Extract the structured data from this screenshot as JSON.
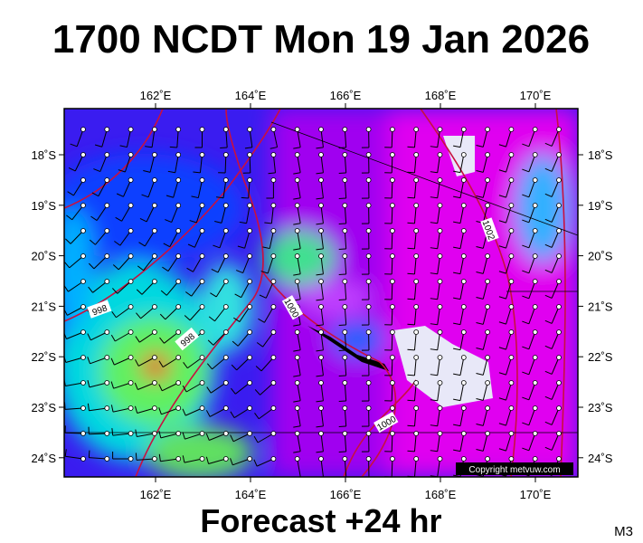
{
  "title": "1700 NCDT Mon 19 Jan 2026",
  "map": {
    "lon_labels": [
      "162˚E",
      "164˚E",
      "166˚E",
      "168˚E",
      "170˚E"
    ],
    "lat_labels": [
      "18˚S",
      "19˚S",
      "20˚S",
      "21˚S",
      "22˚S",
      "23˚S",
      "24˚S"
    ],
    "isobar_labels": [
      "998",
      "998",
      "1000",
      "1000",
      "1002"
    ],
    "copyright": "Copyright metvuw.com"
  },
  "footer": "Forecast +24 hr",
  "code": "M3"
}
